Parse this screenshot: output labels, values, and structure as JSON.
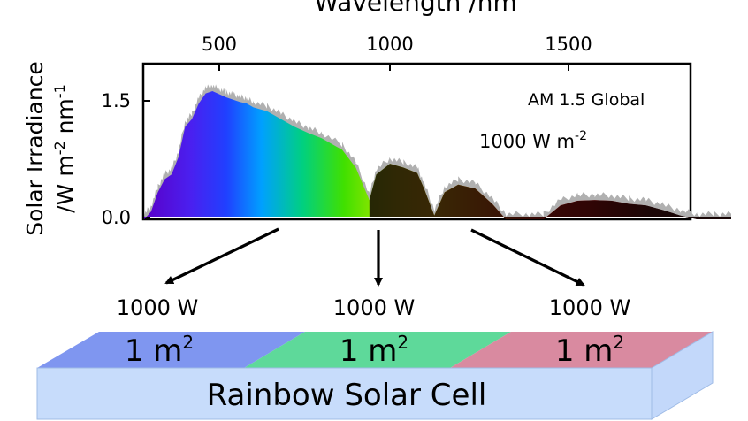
{
  "chart": {
    "x_axis_title": "Wavelength /nm",
    "y_axis_title_line1": "Solar Irradiance",
    "y_axis_title_line2": "/W m",
    "y_axis_title_exp1": "-2",
    "y_axis_title_mid": " nm",
    "y_axis_title_exp2": "-1",
    "legend_label": "AM 1.5 Global",
    "power_density_text": "1000 W m",
    "power_density_exp": "-2",
    "colors": {
      "visible_gradient": [
        "#6a00d6",
        "#3a2cff",
        "#00a8ff",
        "#00d65a",
        "#7ae000",
        "#ffe600",
        "#ff8c00",
        "#ff2a00",
        "#c00000",
        "#2a0a0a"
      ],
      "infrared": "#1a0808",
      "raw_spectrum": "#b0b0b0"
    }
  },
  "chart_data": {
    "type": "area",
    "title": "",
    "xlabel": "Wavelength /nm",
    "ylabel": "Solar Irradiance /W m-2 nm-1",
    "xlim": [
      280,
      2000
    ],
    "ylim": [
      0,
      2.0
    ],
    "x_ticks": [
      "500",
      "1000",
      "1500"
    ],
    "y_ticks": [
      "0.0",
      "1.5"
    ],
    "series": [
      {
        "name": "AM 1.5 Global",
        "x": [
          280,
          300,
          320,
          340,
          360,
          380,
          400,
          420,
          440,
          460,
          480,
          500,
          520,
          540,
          560,
          580,
          600,
          640,
          680,
          720,
          760,
          800,
          860,
          900,
          940,
          960,
          1000,
          1040,
          1080,
          1100,
          1130,
          1160,
          1200,
          1250,
          1300,
          1340,
          1400,
          1450,
          1500,
          1550,
          1600,
          1650,
          1700,
          1750,
          1800,
          1850,
          1900,
          1950,
          2000
        ],
        "y": [
          0.0,
          0.1,
          0.35,
          0.52,
          0.58,
          0.8,
          1.2,
          1.3,
          1.5,
          1.63,
          1.66,
          1.62,
          1.58,
          1.55,
          1.52,
          1.5,
          1.45,
          1.4,
          1.3,
          1.2,
          1.12,
          1.05,
          0.9,
          0.67,
          0.25,
          0.58,
          0.72,
          0.67,
          0.6,
          0.4,
          0.05,
          0.35,
          0.45,
          0.4,
          0.2,
          0.0,
          0.0,
          0.0,
          0.18,
          0.24,
          0.25,
          0.24,
          0.2,
          0.18,
          0.12,
          0.05,
          0.0,
          0.0,
          0.0
        ]
      }
    ]
  },
  "arrows": {
    "labels": [
      "1000 W",
      "1000 W",
      "1000 W"
    ]
  },
  "cell": {
    "segment_labels": [
      "1 m",
      "1 m",
      "1 m"
    ],
    "segment_exp": "2",
    "name": "Rainbow Solar Cell",
    "colors": [
      "#7f96f0",
      "#5ed99a",
      "#d98aa0"
    ]
  }
}
